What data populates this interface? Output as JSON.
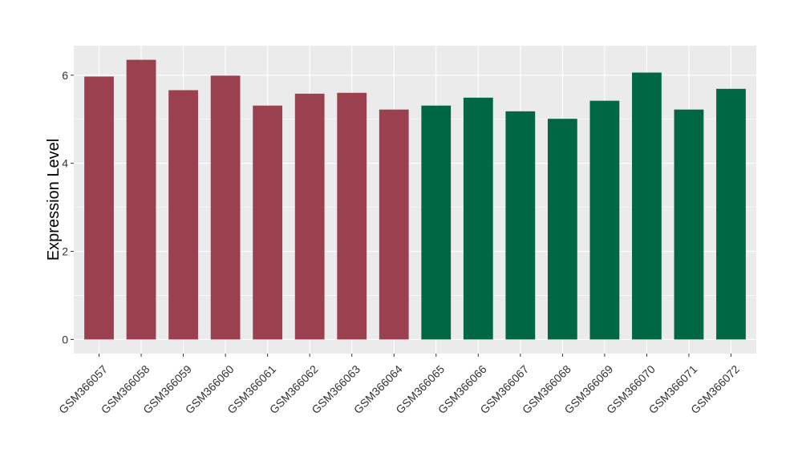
{
  "chart_data": {
    "type": "bar",
    "title": "",
    "xlabel": "",
    "ylabel": "Expression Level",
    "ylim": [
      -0.32,
      6.67
    ],
    "yticks": [
      0,
      2,
      4,
      6
    ],
    "grid": true,
    "legend": "none",
    "categories": [
      "GSM366057",
      "GSM366058",
      "GSM366059",
      "GSM366060",
      "GSM366061",
      "GSM366062",
      "GSM366063",
      "GSM366064",
      "GSM366065",
      "GSM366066",
      "GSM366067",
      "GSM366068",
      "GSM366069",
      "GSM366070",
      "GSM366071",
      "GSM366072"
    ],
    "values": [
      5.97,
      6.35,
      5.66,
      5.99,
      5.31,
      5.58,
      5.6,
      5.22,
      5.31,
      5.49,
      5.18,
      5.01,
      5.42,
      6.06,
      5.22,
      5.69
    ],
    "bar_colors": [
      "#9A404E",
      "#9A404E",
      "#9A404E",
      "#9A404E",
      "#9A404E",
      "#9A404E",
      "#9A404E",
      "#9A404E",
      "#006644",
      "#006644",
      "#006644",
      "#006644",
      "#006644",
      "#006644",
      "#006644",
      "#006644"
    ],
    "panel_background": "#EBEBEB",
    "gridline_color": "#FFFFFF"
  }
}
